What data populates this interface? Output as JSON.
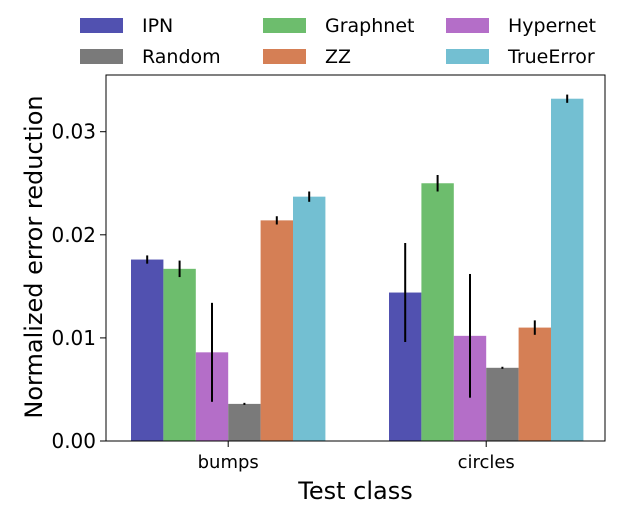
{
  "chart_data": {
    "type": "bar",
    "title": "",
    "xlabel": "Test class",
    "ylabel": "Normalized error reduction",
    "categories": [
      "bumps",
      "circles"
    ],
    "ylim": [
      0,
      0.0355
    ],
    "yticks": [
      0.0,
      0.01,
      0.02,
      0.03
    ],
    "ytick_labels": [
      "0.00",
      "0.01",
      "0.02",
      "0.03"
    ],
    "legend_position": "top, outside plot, 3 columns",
    "series": [
      {
        "name": "IPN",
        "color": "#5151b0",
        "values": [
          0.0176,
          0.0144
        ],
        "errors": [
          0.0004,
          0.0048
        ]
      },
      {
        "name": "Graphnet",
        "color": "#6dbd6d",
        "values": [
          0.0167,
          0.025
        ],
        "errors": [
          0.0008,
          0.0008
        ]
      },
      {
        "name": "Hypernet",
        "color": "#b46ec8",
        "values": [
          0.0086,
          0.0102
        ],
        "errors": [
          0.0048,
          0.006
        ]
      },
      {
        "name": "Random",
        "color": "#7a7a7a",
        "values": [
          0.0036,
          0.0071
        ],
        "errors": [
          0.0001,
          0.0001
        ]
      },
      {
        "name": "ZZ",
        "color": "#d57f55",
        "values": [
          0.0214,
          0.011
        ],
        "errors": [
          0.0004,
          0.0007
        ]
      },
      {
        "name": "TrueError",
        "color": "#73bfd2",
        "values": [
          0.0237,
          0.0332
        ],
        "errors": [
          0.0005,
          0.0004
        ]
      }
    ]
  }
}
